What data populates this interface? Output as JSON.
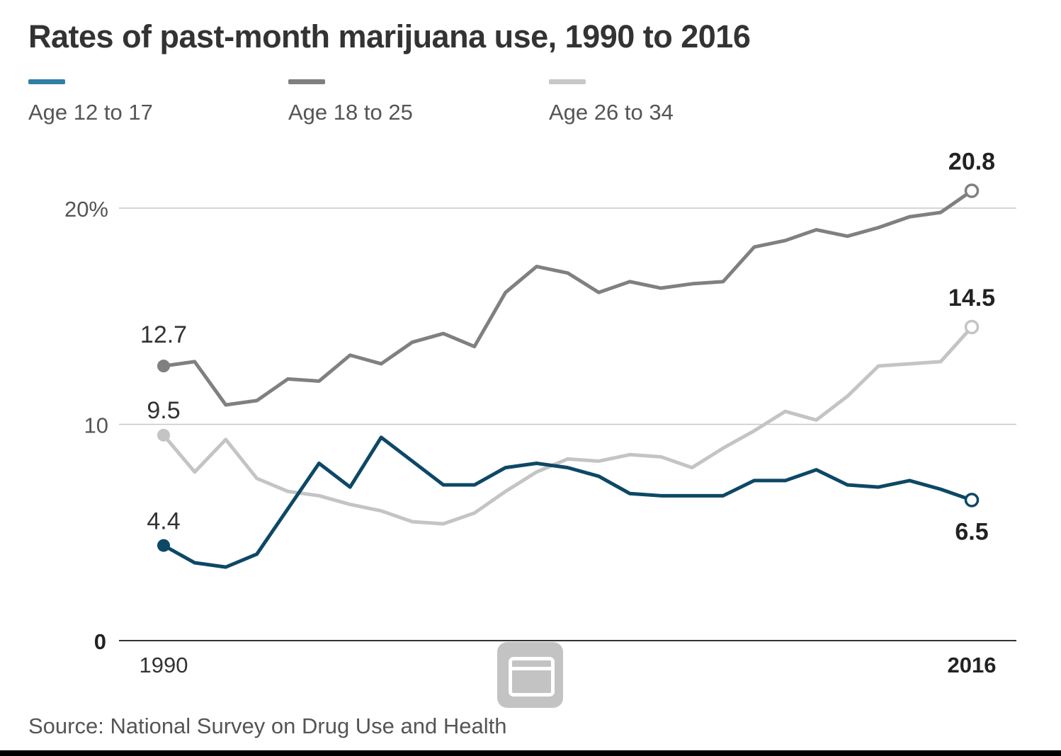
{
  "chart_data": {
    "type": "line",
    "title": "Rates of past-month marijuana use, 1990 to 2016",
    "x": [
      1990,
      1991,
      1992,
      1993,
      1994,
      1995,
      1996,
      1997,
      1998,
      1999,
      2000,
      2001,
      2002,
      2003,
      2004,
      2005,
      2006,
      2007,
      2008,
      2009,
      2010,
      2011,
      2012,
      2013,
      2014,
      2015,
      2016
    ],
    "x_tick_labels": [
      "1990",
      "2016"
    ],
    "y_tick_labels": [
      "0",
      "10",
      "20%"
    ],
    "y_ticks": [
      0,
      10,
      20
    ],
    "ylim": [
      0,
      21.5
    ],
    "grid": "horizontal",
    "legend_placement": "top",
    "series": [
      {
        "name": "Age 12 to 17",
        "color": "#0d4866",
        "legend_color": "#2f7fa3",
        "start_label": "4.4",
        "end_label": "6.5",
        "values": [
          4.4,
          3.6,
          3.4,
          4.0,
          6.1,
          8.2,
          7.1,
          9.4,
          8.3,
          7.2,
          7.2,
          8.0,
          8.2,
          8.0,
          7.6,
          6.8,
          6.7,
          6.7,
          6.7,
          7.4,
          7.4,
          7.9,
          7.2,
          7.1,
          7.4,
          7.0,
          6.5
        ]
      },
      {
        "name": "Age 18 to 25",
        "color": "#808080",
        "legend_color": "#808080",
        "start_label": "12.7",
        "end_label": "20.8",
        "values": [
          12.7,
          12.9,
          10.9,
          11.1,
          12.1,
          12.0,
          13.2,
          12.8,
          13.8,
          14.2,
          13.6,
          16.1,
          17.3,
          17.0,
          16.1,
          16.6,
          16.3,
          16.5,
          16.6,
          18.2,
          18.5,
          19.0,
          18.7,
          19.1,
          19.6,
          19.8,
          20.8
        ]
      },
      {
        "name": "Age 26 to 34",
        "color": "#c4c4c4",
        "legend_color": "#c8c8c8",
        "start_label": "9.5",
        "end_label": "14.5",
        "values": [
          9.5,
          7.8,
          9.3,
          7.5,
          6.9,
          6.7,
          6.3,
          6.0,
          5.5,
          5.4,
          5.9,
          6.9,
          7.8,
          8.4,
          8.3,
          8.6,
          8.5,
          8.0,
          8.9,
          9.7,
          10.6,
          10.2,
          11.3,
          12.7,
          12.8,
          12.9,
          14.5
        ]
      }
    ],
    "source": "Source: National Survey on Drug Use and Health"
  },
  "overlay": {
    "icon": "window-icon"
  }
}
